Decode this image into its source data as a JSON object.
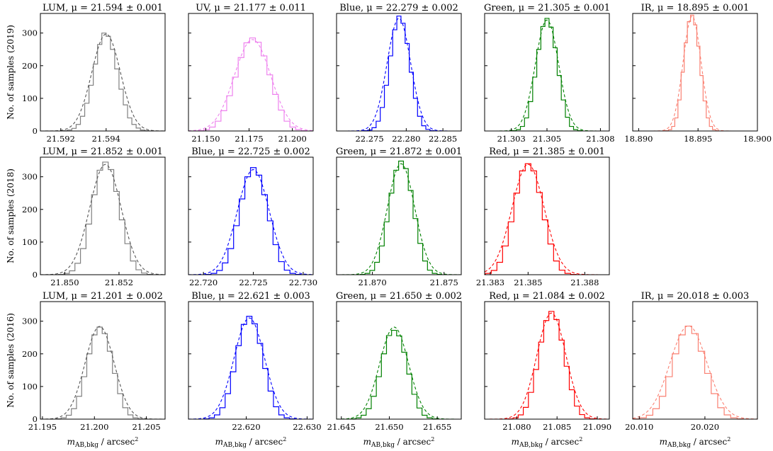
{
  "figure": {
    "row_labels": [
      "No. of samples (2019)",
      "No. of samples (2018)",
      "No. of samples (2016)"
    ],
    "xlabel": "m_AB,bkg / arcsec^2",
    "xlabel_parts": {
      "symbol": "m",
      "subscript": "AB,bkg",
      "unit": "/ arcsec",
      "unit_power": "2"
    },
    "y_ticks": [
      "0",
      "100",
      "200",
      "300"
    ]
  },
  "colors": {
    "LUM": "#808080",
    "UV": "#ee82ee",
    "Blue": "#0000ff",
    "Green": "#008000",
    "Red": "#ff0000",
    "IR": "#fa8072"
  },
  "chart_data": [
    {
      "type": "bar",
      "row": 0,
      "col": 0,
      "band": "LUM",
      "color": "#808080",
      "title": "LUM, μ = 21.594 ± 0.001",
      "mu": 21.594,
      "sigma": 0.00063,
      "peak": 297,
      "xlim": [
        21.5911,
        21.5966
      ],
      "ylim": [
        0,
        360
      ],
      "xticks": [
        21.592,
        21.594
      ],
      "counts": [
        1,
        3,
        8,
        20,
        45,
        85,
        140,
        205,
        265,
        300,
        290,
        250,
        190,
        128,
        80,
        40,
        20,
        9,
        3,
        1
      ]
    },
    {
      "type": "bar",
      "row": 0,
      "col": 1,
      "band": "UV",
      "color": "#ee82ee",
      "title": "UV, μ = 21.177 ± 0.011",
      "mu": 21.177,
      "sigma": 0.0105,
      "peak": 280,
      "xlim": [
        21.14,
        21.212
      ],
      "ylim": [
        0,
        360
      ],
      "xticks": [
        21.15,
        21.175,
        21.2
      ],
      "counts": [
        1,
        4,
        12,
        30,
        62,
        108,
        165,
        225,
        270,
        285,
        272,
        230,
        172,
        112,
        64,
        30,
        12,
        4,
        1
      ]
    },
    {
      "type": "bar",
      "row": 0,
      "col": 2,
      "band": "Blue",
      "color": "#0000ff",
      "title": "Blue, μ = 22.279 ± 0.002",
      "mu": 22.279,
      "sigma": 0.0016,
      "peak": 345,
      "xlim": [
        22.2705,
        22.2875
      ],
      "ylim": [
        0,
        360
      ],
      "xticks": [
        22.275,
        22.28,
        22.285
      ],
      "counts": [
        1,
        3,
        10,
        30,
        72,
        140,
        230,
        310,
        352,
        330,
        268,
        180,
        100,
        45,
        16,
        5,
        1
      ]
    },
    {
      "type": "bar",
      "row": 0,
      "col": 3,
      "band": "Green",
      "color": "#008000",
      "title": "Green, μ = 21.305 ± 0.001",
      "mu": 21.305,
      "sigma": 0.00065,
      "peak": 340,
      "xlim": [
        21.3015,
        21.3085
      ],
      "ylim": [
        0,
        360
      ],
      "xticks": [
        21.303,
        21.305,
        21.308
      ],
      "counts": [
        1,
        4,
        14,
        40,
        90,
        165,
        250,
        320,
        345,
        318,
        255,
        170,
        95,
        42,
        14,
        4,
        1
      ]
    },
    {
      "type": "bar",
      "row": 0,
      "col": 4,
      "band": "IR",
      "color": "#fa8072",
      "title": "IR, μ = 18.895 ± 0.001",
      "mu": 18.8945,
      "sigma": 0.00075,
      "peak": 352,
      "xlim": [
        18.8895,
        18.9
      ],
      "ylim": [
        0,
        360
      ],
      "xticks": [
        18.89,
        18.895,
        18.9
      ],
      "counts": [
        1,
        4,
        14,
        40,
        95,
        180,
        270,
        335,
        355,
        325,
        260,
        170,
        92,
        40,
        14,
        4,
        1
      ]
    },
    {
      "type": "bar",
      "row": 1,
      "col": 0,
      "band": "LUM",
      "color": "#808080",
      "title": "LUM, μ = 21.852 ± 0.001",
      "mu": 21.8515,
      "sigma": 0.00058,
      "peak": 338,
      "xlim": [
        21.8491,
        21.8537
      ],
      "ylim": [
        0,
        360
      ],
      "xticks": [
        21.85,
        21.852
      ],
      "counts": [
        1,
        4,
        12,
        35,
        80,
        155,
        245,
        320,
        345,
        322,
        255,
        168,
        95,
        42,
        15,
        5,
        1
      ]
    },
    {
      "type": "bar",
      "row": 1,
      "col": 1,
      "band": "Blue",
      "color": "#0000ff",
      "title": "Blue, μ = 22.725 ± 0.002",
      "mu": 22.725,
      "sigma": 0.0016,
      "peak": 322,
      "xlim": [
        22.7185,
        22.731
      ],
      "ylim": [
        0,
        360
      ],
      "xticks": [
        22.72,
        22.725,
        22.73
      ],
      "counts": [
        1,
        4,
        13,
        36,
        80,
        150,
        232,
        300,
        328,
        305,
        245,
        165,
        92,
        40,
        14,
        4,
        1
      ]
    },
    {
      "type": "bar",
      "row": 1,
      "col": 2,
      "band": "Green",
      "color": "#008000",
      "title": "Green, μ = 21.872 ± 0.001",
      "mu": 21.872,
      "sigma": 0.00095,
      "peak": 340,
      "xlim": [
        21.8675,
        21.8762
      ],
      "ylim": [
        0,
        360
      ],
      "xticks": [
        21.87,
        21.875
      ],
      "counts": [
        1,
        4,
        13,
        38,
        88,
        162,
        250,
        320,
        348,
        325,
        258,
        172,
        96,
        42,
        14,
        4,
        1
      ]
    },
    {
      "type": "bar",
      "row": 1,
      "col": 3,
      "band": "Red",
      "color": "#ff0000",
      "title": "Red, μ = 21.385 ± 0.001",
      "mu": 21.385,
      "sigma": 0.00085,
      "peak": 338,
      "xlim": [
        21.3827,
        21.3893
      ],
      "ylim": [
        0,
        360
      ],
      "xticks": [
        21.383,
        21.385,
        21.388
      ],
      "counts": [
        1,
        4,
        13,
        38,
        88,
        162,
        250,
        318,
        340,
        318,
        252,
        168,
        94,
        42,
        14,
        4,
        1
      ]
    },
    {
      "type": "bar",
      "row": 2,
      "col": 0,
      "band": "LUM",
      "color": "#808080",
      "title": "LUM, μ = 21.201 ± 0.002",
      "mu": 21.2005,
      "sigma": 0.0014,
      "peak": 284,
      "xlim": [
        21.1948,
        21.2068
      ],
      "ylim": [
        0,
        360
      ],
      "xticks": [
        21.195,
        21.2,
        21.205
      ],
      "counts": [
        1,
        4,
        12,
        32,
        70,
        130,
        200,
        258,
        282,
        262,
        208,
        140,
        78,
        35,
        13,
        4,
        1
      ]
    },
    {
      "type": "bar",
      "row": 2,
      "col": 1,
      "band": "Blue",
      "color": "#0000ff",
      "title": "Blue, μ = 22.621 ± 0.003",
      "mu": 22.6205,
      "sigma": 0.0025,
      "peak": 310,
      "xlim": [
        22.6105,
        22.631
      ],
      "ylim": [
        0,
        360
      ],
      "xticks": [
        22.62,
        22.63
      ],
      "counts": [
        1,
        4,
        13,
        35,
        78,
        145,
        225,
        290,
        315,
        292,
        232,
        155,
        86,
        38,
        13,
        4,
        1
      ]
    },
    {
      "type": "bar",
      "row": 2,
      "col": 2,
      "band": "Green",
      "color": "#008000",
      "title": "Green, μ = 21.650 ± 0.002",
      "mu": 21.6505,
      "sigma": 0.0015,
      "peak": 282,
      "xlim": [
        21.6445,
        21.6575
      ],
      "ylim": [
        0,
        360
      ],
      "xticks": [
        21.645,
        21.65,
        21.655
      ],
      "counts": [
        1,
        4,
        12,
        32,
        70,
        130,
        200,
        256,
        272,
        255,
        205,
        138,
        76,
        34,
        12,
        4,
        1
      ]
    },
    {
      "type": "bar",
      "row": 2,
      "col": 3,
      "band": "Red",
      "color": "#ff0000",
      "title": "Red, μ = 21.084 ± 0.002",
      "mu": 21.0843,
      "sigma": 0.0018,
      "peak": 325,
      "xlim": [
        21.076,
        21.0915
      ],
      "ylim": [
        0,
        360
      ],
      "xticks": [
        21.08,
        21.085,
        21.09
      ],
      "counts": [
        1,
        4,
        13,
        36,
        82,
        152,
        236,
        302,
        330,
        305,
        242,
        162,
        90,
        40,
        14,
        4,
        1
      ]
    },
    {
      "type": "bar",
      "row": 2,
      "col": 4,
      "band": "IR",
      "color": "#fa8072",
      "title": "IR, μ = 20.018 ± 0.003",
      "mu": 20.0175,
      "sigma": 0.0028,
      "peak": 286,
      "xlim": [
        20.009,
        20.028
      ],
      "ylim": [
        0,
        360
      ],
      "xticks": [
        20.01,
        20.02
      ],
      "counts": [
        1,
        4,
        12,
        32,
        70,
        130,
        200,
        258,
        285,
        262,
        208,
        140,
        78,
        35,
        13,
        4,
        1
      ]
    }
  ]
}
